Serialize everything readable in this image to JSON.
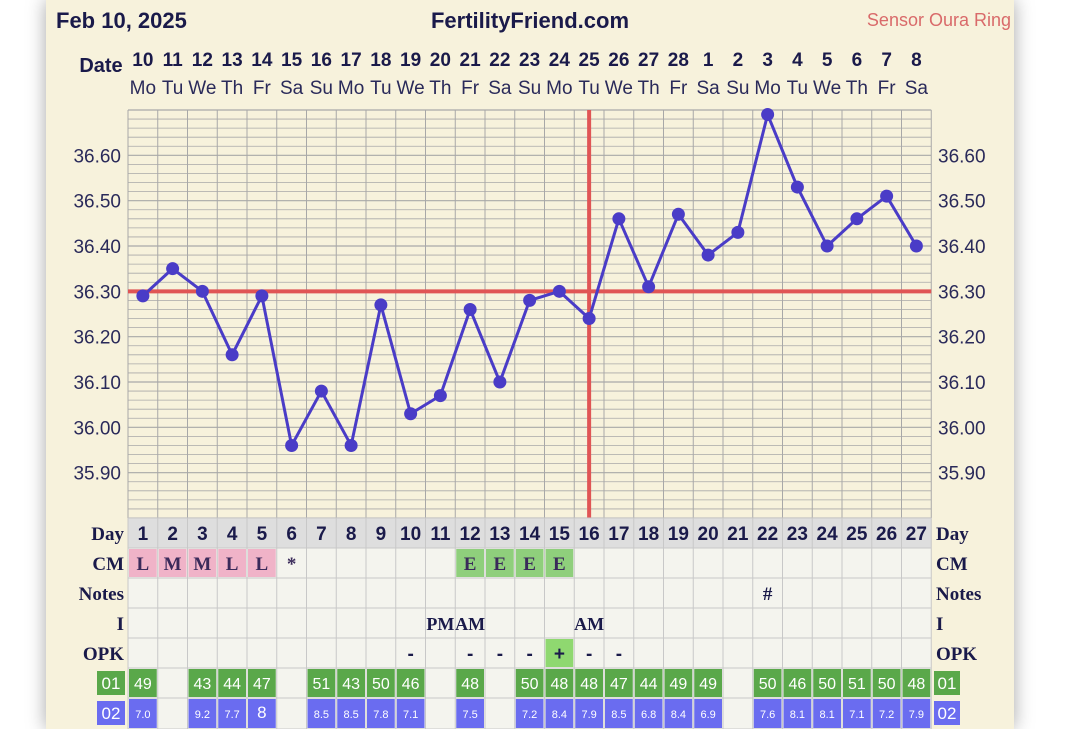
{
  "header": {
    "date": "Feb 10, 2025",
    "site": "FertilityFriend.com",
    "sensor": "Sensor Oura Ring"
  },
  "row_labels": {
    "date": "Date",
    "day": "Day",
    "cm": "CM",
    "notes": "Notes",
    "intercourse": "I",
    "opk": "OPK",
    "metric1": "01",
    "metric2": "02"
  },
  "colors": {
    "line": "#4a3cc7",
    "coverline": "#e05555",
    "grid": "#a8a8a8",
    "cm_pink": "#f0b3c8",
    "cm_green": "#8fcf7c",
    "metric_green": "#5aa84a",
    "metric_blue": "#6a6cf0",
    "opk_plus": "#8fd870",
    "sensor": "#d96a6a"
  },
  "chart_data": {
    "type": "line",
    "title": "",
    "dates": [
      "10",
      "11",
      "12",
      "13",
      "14",
      "15",
      "16",
      "17",
      "18",
      "19",
      "20",
      "21",
      "22",
      "23",
      "24",
      "25",
      "26",
      "27",
      "28",
      "1",
      "2",
      "3",
      "4",
      "5",
      "6",
      "7",
      "8"
    ],
    "weekdays": [
      "Mo",
      "Tu",
      "We",
      "Th",
      "Fr",
      "Sa",
      "Su",
      "Mo",
      "Tu",
      "We",
      "Th",
      "Fr",
      "Sa",
      "Su",
      "Mo",
      "Tu",
      "We",
      "Th",
      "Fr",
      "Sa",
      "Su",
      "Mo",
      "Tu",
      "We",
      "Th",
      "Fr",
      "Sa"
    ],
    "cycle_days": [
      "1",
      "2",
      "3",
      "4",
      "5",
      "6",
      "7",
      "8",
      "9",
      "10",
      "11",
      "12",
      "13",
      "14",
      "15",
      "16",
      "17",
      "18",
      "19",
      "20",
      "21",
      "22",
      "23",
      "24",
      "25",
      "26",
      "27"
    ],
    "temperatures": [
      36.29,
      36.35,
      36.3,
      36.16,
      36.29,
      35.96,
      36.08,
      35.96,
      36.27,
      36.03,
      36.07,
      36.26,
      36.1,
      36.28,
      36.3,
      36.24,
      36.46,
      36.31,
      36.47,
      36.38,
      36.43,
      36.69,
      36.53,
      36.4,
      36.46,
      36.51,
      36.4
    ],
    "y_ticks": [
      "35.90",
      "36.00",
      "36.10",
      "36.20",
      "36.30",
      "36.40",
      "36.50",
      "36.60"
    ],
    "ylim": [
      35.81,
      36.71
    ],
    "coverline": 36.3,
    "ovulation_day": "16",
    "grid": true
  },
  "rows": {
    "cm": [
      "L",
      "M",
      "M",
      "L",
      "L",
      "*",
      "",
      "",
      "",
      "",
      "",
      "E",
      "E",
      "E",
      "E",
      "",
      "",
      "",
      "",
      "",
      "",
      "",
      "",
      "",
      "",
      "",
      ""
    ],
    "notes": [
      "",
      "",
      "",
      "",
      "",
      "",
      "",
      "",
      "",
      "",
      "",
      "",
      "",
      "",
      "",
      "",
      "",
      "",
      "",
      "",
      "",
      "#",
      "",
      "",
      "",
      "",
      ""
    ],
    "intercourse": [
      "",
      "",
      "",
      "",
      "",
      "",
      "",
      "",
      "",
      "",
      "PM",
      "AM",
      "",
      "",
      "",
      "AM",
      "",
      "",
      "",
      "",
      "",
      "",
      "",
      "",
      "",
      "",
      ""
    ],
    "opk": [
      "",
      "",
      "",
      "",
      "",
      "",
      "",
      "",
      "",
      "-",
      "",
      "-",
      "-",
      "-",
      "+",
      "-",
      "-",
      "",
      "",
      "",
      "",
      "",
      "",
      "",
      "",
      "",
      ""
    ],
    "metric1": [
      "49",
      "",
      "43",
      "44",
      "47",
      "",
      "51",
      "43",
      "50",
      "46",
      "",
      "48",
      "",
      "50",
      "48",
      "48",
      "47",
      "44",
      "49",
      "49",
      "",
      "50",
      "46",
      "50",
      "51",
      "50",
      "48"
    ],
    "metric2": [
      "7.0",
      "",
      "9.2",
      "7.7",
      "8",
      "",
      "8.5",
      "8.5",
      "7.8",
      "7.1",
      "",
      "7.5",
      "",
      "7.2",
      "8.4",
      "7.9",
      "8.5",
      "6.8",
      "8.4",
      "6.9",
      "",
      "7.6",
      "8.1",
      "8.1",
      "7.1",
      "7.2",
      "7.9"
    ]
  }
}
